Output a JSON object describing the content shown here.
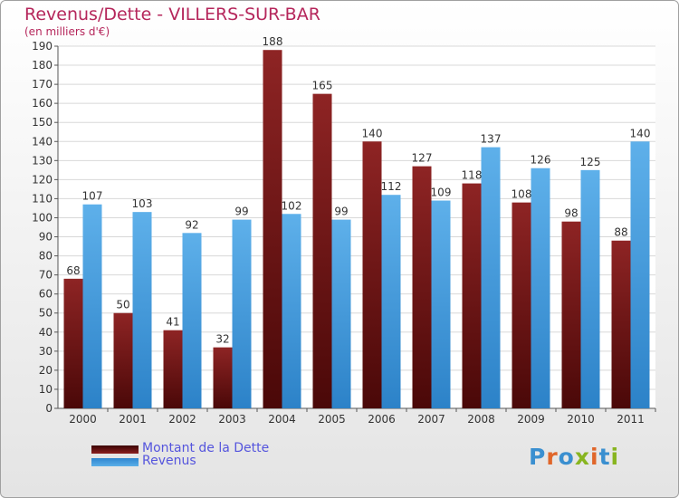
{
  "title": "Revenus/Dette - VILLERS-SUR-BAR",
  "subtitle": "(en milliers d'€)",
  "watermark": "Proxiti",
  "colors": {
    "dette": "#7b1a1a",
    "revenus": "#4a9de0",
    "title": "#b5265b",
    "legend_text": "#5555dd"
  },
  "chart_data": {
    "type": "bar",
    "categories": [
      "2000",
      "2001",
      "2002",
      "2003",
      "2004",
      "2005",
      "2006",
      "2007",
      "2008",
      "2009",
      "2010",
      "2011"
    ],
    "series": [
      {
        "name": "Montant de la Dette",
        "values": [
          68,
          50,
          41,
          32,
          188,
          165,
          140,
          127,
          118,
          108,
          98,
          88
        ]
      },
      {
        "name": "Revenus",
        "values": [
          107,
          103,
          92,
          99,
          102,
          99,
          112,
          109,
          137,
          126,
          125,
          140
        ]
      }
    ],
    "ylim": [
      0,
      190
    ],
    "yticks": [
      0,
      10,
      20,
      30,
      40,
      50,
      60,
      70,
      80,
      90,
      100,
      110,
      120,
      130,
      140,
      150,
      160,
      170,
      180,
      190
    ],
    "grid": true,
    "legend_position": "bottom-left"
  }
}
